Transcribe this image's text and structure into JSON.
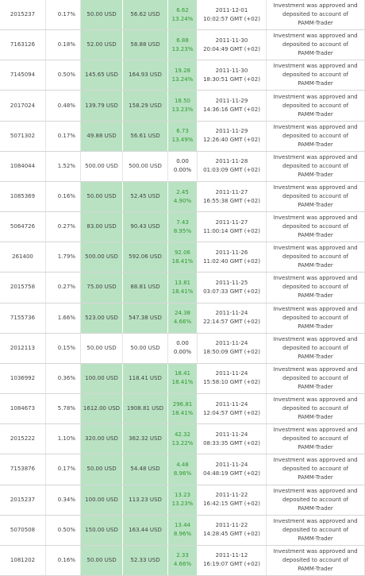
{
  "table": {
    "rows": [
      {
        "id": "2015237",
        "share": "0.17%",
        "invested": "50.00 USD",
        "current": "56.62 USD",
        "profit": [
          "6.62",
          "13.24%"
        ],
        "date": [
          "2011-12-01",
          "10:02:57 GMT (+02)"
        ],
        "status": [
          "Investment was approved and",
          "deposited to account of",
          "PAMM-Trader"
        ],
        "highlight": true
      },
      {
        "id": "7163126",
        "share": "0.18%",
        "invested": "52.00 USD",
        "current": "58.88 USD",
        "profit": [
          "6.88",
          "13.23%"
        ],
        "date": [
          "2011-11-30",
          "20:04:49 GMT (+02)"
        ],
        "status": [
          "Investment was approved and",
          "deposited to account of",
          "PAMM-Trader"
        ],
        "highlight": true
      },
      {
        "id": "7145094",
        "share": "0.50%",
        "invested": "145.65 USD",
        "current": "164.93 USD",
        "profit": [
          "19.28",
          "13.24%"
        ],
        "date": [
          "2011-11-30",
          "18:30:51 GMT (+02)"
        ],
        "status": [
          "Investment was approved and",
          "deposited to account of",
          "PAMM-Trader"
        ],
        "highlight": true
      },
      {
        "id": "2017024",
        "share": "0.48%",
        "invested": "139.79 USD",
        "current": "158.29 USD",
        "profit": [
          "18.50",
          "13.23%"
        ],
        "date": [
          "2011-11-29",
          "14:36:16 GMT (+02)"
        ],
        "status": [
          "Investment was approved and",
          "deposited to account of",
          "PAMM-Trader"
        ],
        "highlight": true
      },
      {
        "id": "5071302",
        "share": "0.17%",
        "invested": "49.88 USD",
        "current": "56.61 USD",
        "profit": [
          "6.73",
          "13.49%"
        ],
        "date": [
          "2011-11-29",
          "12:26:40 GMT (+02)"
        ],
        "status": [
          "Investment was approved and",
          "deposited to account of",
          "PAMM-Trader"
        ],
        "highlight": true
      },
      {
        "id": "1084044",
        "share": "1.52%",
        "invested": "500.00 USD",
        "current": "500.00 USD",
        "profit": [
          "0.00",
          "0.00%"
        ],
        "date": [
          "2011-11-28",
          "01:03:09 GMT (+02)"
        ],
        "status": [
          "Investment was approved and",
          "deposited to account of",
          "PAMM-Trader"
        ],
        "highlight": false
      },
      {
        "id": "1085369",
        "share": "0.16%",
        "invested": "50.00 USD",
        "current": "52.45 USD",
        "profit": [
          "2.45",
          "4.90%"
        ],
        "date": [
          "2011-11-27",
          "16:55:38 GMT (+02)"
        ],
        "status": [
          "Investment was approved and",
          "deposited to account of",
          "PAMM-Trader"
        ],
        "highlight": true
      },
      {
        "id": "5064726",
        "share": "0.27%",
        "invested": "83.00 USD",
        "current": "90.43 USD",
        "profit": [
          "7.43",
          "8.95%"
        ],
        "date": [
          "2011-11-27",
          "11:00:14 GMT (+02)"
        ],
        "status": [
          "Investment was approved and",
          "deposited to account of",
          "PAMM-Trader"
        ],
        "highlight": true
      },
      {
        "id": "261400",
        "share": "1.79%",
        "invested": "500.00 USD",
        "current": "592.06 USD",
        "profit": [
          "92.06",
          "18.41%"
        ],
        "date": [
          "2011-11-26",
          "11:02:40 GMT (+02)"
        ],
        "status": [
          "Investment was approved and",
          "deposited to account of",
          "PAMM-Trader"
        ],
        "highlight": true
      },
      {
        "id": "2015758",
        "share": "0.27%",
        "invested": "75.00 USD",
        "current": "88.81 USD",
        "profit": [
          "13.81",
          "18.41%"
        ],
        "date": [
          "2011-11-25",
          "03:07:33 GMT (+02)"
        ],
        "status": [
          "Investment was approved and",
          "deposited to account of",
          "PAMM-Trader"
        ],
        "highlight": true
      },
      {
        "id": "7155736",
        "share": "1.66%",
        "invested": "523.00 USD",
        "current": "547.38 USD",
        "profit": [
          "24.38",
          "4.66%"
        ],
        "date": [
          "2011-11-24",
          "22:14:57 GMT (+02)"
        ],
        "status": [
          "Investment was approved and",
          "deposited to account of",
          "PAMM-Trader"
        ],
        "highlight": true
      },
      {
        "id": "2012113",
        "share": "0.15%",
        "invested": "50.00 USD",
        "current": "50.00 USD",
        "profit": [
          "0.00",
          "0.00%"
        ],
        "date": [
          "2011-11-24",
          "18:50:09 GMT (+02)"
        ],
        "status": [
          "Investment was approved and",
          "deposited to account of",
          "PAMM-Trader"
        ],
        "highlight": false
      },
      {
        "id": "1036992",
        "share": "0.36%",
        "invested": "100.00 USD",
        "current": "118.41 USD",
        "profit": [
          "18.41",
          "18.41%"
        ],
        "date": [
          "2011-11-24",
          "15:58:10 GMT (+02)"
        ],
        "status": [
          "Investment was approved and",
          "deposited to account of",
          "PAMM-Trader"
        ],
        "highlight": true
      },
      {
        "id": "1084673",
        "share": "5.78%",
        "invested": "1612.00 USD",
        "current": "1908.81 USD",
        "profit": [
          "296.81",
          "18.41%"
        ],
        "date": [
          "2011-11-24",
          "12:04:57 GMT (+02)"
        ],
        "status": [
          "Investment was approved and",
          "deposited to account of",
          "PAMM-Trader"
        ],
        "highlight": true
      },
      {
        "id": "2015222",
        "share": "1.10%",
        "invested": "320.00 USD",
        "current": "362.32 USD",
        "profit": [
          "42.32",
          "13.22%"
        ],
        "date": [
          "2011-11-24",
          "08:33:35 GMT (+02)"
        ],
        "status": [
          "Investment was approved and",
          "deposited to account of",
          "PAMM-Trader"
        ],
        "highlight": true
      },
      {
        "id": "7153876",
        "share": "0.17%",
        "invested": "50.00 USD",
        "current": "54.48 USD",
        "profit": [
          "4.48",
          "8.96%"
        ],
        "date": [
          "2011-11-24",
          "04:48:19 GMT (+02)"
        ],
        "status": [
          "Investment was approved and",
          "deposited to account of",
          "PAMM-Trader"
        ],
        "highlight": true
      },
      {
        "id": "2015237",
        "share": "0.34%",
        "invested": "100.00 USD",
        "current": "113.23 USD",
        "profit": [
          "13.23",
          "13.23%"
        ],
        "date": [
          "2011-11-22",
          "16:42:15 GMT (+02)"
        ],
        "status": [
          "Investment was approved and",
          "deposited to account of",
          "PAMM-Trader"
        ],
        "highlight": true
      },
      {
        "id": "5070508",
        "share": "0.50%",
        "invested": "150.00 USD",
        "current": "163.44 USD",
        "profit": [
          "13.44",
          "8.96%"
        ],
        "date": [
          "2011-11-22",
          "14:28:45 GMT (+02)"
        ],
        "status": [
          "Investment was approved and",
          "deposited to account of",
          "PAMM-Trader"
        ],
        "highlight": true
      },
      {
        "id": "1081202",
        "share": "0.16%",
        "invested": "50.00 USD",
        "current": "52.33 USD",
        "profit": [
          "2.33",
          "4.66%"
        ],
        "date": [
          "2011-11-12",
          "16:19:07 GMT (+02)"
        ],
        "status": [
          "Investment was approved and",
          "deposited to account of",
          "PAMM-Trader"
        ],
        "highlight": true
      }
    ]
  }
}
